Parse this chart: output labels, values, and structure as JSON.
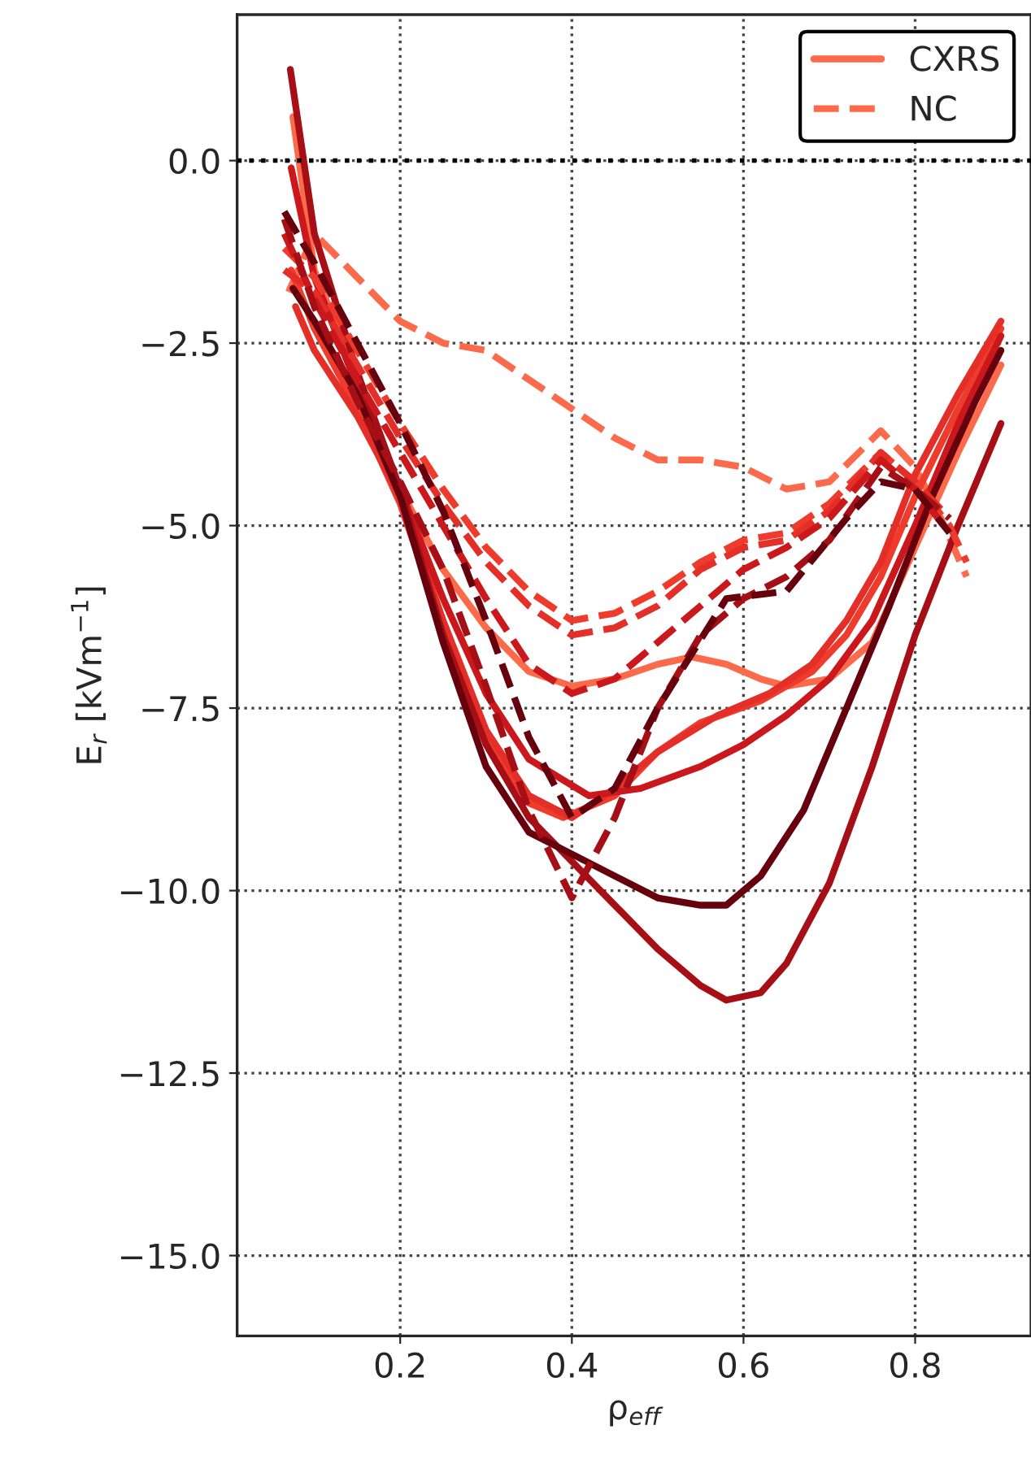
{
  "chart_data": {
    "type": "line",
    "xlabel": "ρ$_{eff}$",
    "ylabel": "E$_{r}$ [kVm$^{−1}$]",
    "xlim": [
      0.01,
      0.935
    ],
    "ylim": [
      -16.1,
      2.0
    ],
    "xticks": [
      0.2,
      0.4,
      0.6,
      0.8
    ],
    "yticks": [
      {
        "value": -15,
        "label": "−15.0"
      },
      {
        "value": -12.5,
        "label": "−12.5"
      },
      {
        "value": -10,
        "label": "−10.0"
      },
      {
        "value": -7.5,
        "label": "−7.5"
      },
      {
        "value": -5,
        "label": "−5.0"
      },
      {
        "value": -2.5,
        "label": "−2.5"
      },
      {
        "value": 0,
        "label": "0.0"
      }
    ],
    "grid": true,
    "legend": "top right",
    "marker": "none",
    "ref_lines": [
      {
        "axis": "y",
        "value": 0,
        "color": "#000000",
        "line_style": "dotted"
      }
    ],
    "series": [
      {
        "name": "CXRS",
        "color": "#fb6a4a",
        "line_style": "solid",
        "x": [
          0.075,
          0.1,
          0.15,
          0.2,
          0.25,
          0.3,
          0.35,
          0.4,
          0.45,
          0.5,
          0.54,
          0.58,
          0.62,
          0.65,
          0.7,
          0.75,
          0.8,
          0.85,
          0.9
        ],
        "values": [
          0.6,
          -1.5,
          -3.0,
          -4.5,
          -5.6,
          -6.4,
          -7.0,
          -7.2,
          -7.1,
          -6.9,
          -6.8,
          -6.9,
          -7.1,
          -7.2,
          -7.1,
          -6.6,
          -5.3,
          -4.0,
          -2.8
        ]
      },
      {
        "name": "NC",
        "color": "#fb6a4a",
        "line_style": "dashed",
        "x": [
          0.07,
          0.1,
          0.15,
          0.2,
          0.25,
          0.3,
          0.35,
          0.4,
          0.45,
          0.5,
          0.55,
          0.6,
          0.65,
          0.7,
          0.76,
          0.8,
          0.83,
          0.86
        ],
        "values": [
          -1.8,
          -1.0,
          -1.6,
          -2.2,
          -2.5,
          -2.6,
          -3.0,
          -3.4,
          -3.8,
          -4.1,
          -4.1,
          -4.2,
          -4.5,
          -4.4,
          -3.7,
          -4.2,
          -4.9,
          -5.7
        ]
      },
      {
        "color": "#ef3b2c",
        "line_style": "solid",
        "x": [
          0.073,
          0.1,
          0.15,
          0.2,
          0.25,
          0.3,
          0.35,
          0.39,
          0.45,
          0.5,
          0.55,
          0.62,
          0.68,
          0.72,
          0.76,
          0.8,
          0.85,
          0.9
        ],
        "values": [
          -1.5,
          -2.3,
          -3.4,
          -4.7,
          -6.4,
          -7.9,
          -8.8,
          -9.0,
          -8.7,
          -8.1,
          -7.7,
          -7.4,
          -7.0,
          -6.5,
          -5.7,
          -4.6,
          -3.4,
          -2.3
        ]
      },
      {
        "color": "#e32f27",
        "line_style": "solid",
        "x": [
          0.078,
          0.1,
          0.15,
          0.2,
          0.25,
          0.3,
          0.35,
          0.4,
          0.45,
          0.5,
          0.57,
          0.63,
          0.68,
          0.72,
          0.76,
          0.8,
          0.85,
          0.9
        ],
        "values": [
          -2.0,
          -2.6,
          -3.5,
          -4.6,
          -6.3,
          -7.8,
          -8.7,
          -9.0,
          -8.6,
          -8.1,
          -7.6,
          -7.3,
          -6.9,
          -6.3,
          -5.5,
          -4.3,
          -3.2,
          -2.2
        ]
      },
      {
        "color": "#cb181d",
        "line_style": "solid",
        "x": [
          0.073,
          0.1,
          0.15,
          0.2,
          0.25,
          0.3,
          0.35,
          0.42,
          0.48,
          0.55,
          0.6,
          0.65,
          0.7,
          0.75,
          0.8,
          0.85,
          0.9
        ],
        "values": [
          -0.1,
          -1.6,
          -3.1,
          -4.5,
          -6.0,
          -7.3,
          -8.2,
          -8.7,
          -8.6,
          -8.3,
          -8.0,
          -7.6,
          -7.1,
          -6.3,
          -5.0,
          -3.6,
          -2.4
        ]
      },
      {
        "color": "#a50f15",
        "line_style": "solid",
        "x": [
          0.072,
          0.1,
          0.15,
          0.2,
          0.25,
          0.3,
          0.35,
          0.4,
          0.45,
          0.5,
          0.55,
          0.58,
          0.62,
          0.65,
          0.7,
          0.75,
          0.8,
          0.85,
          0.9
        ],
        "values": [
          1.25,
          -1.0,
          -2.9,
          -4.5,
          -6.5,
          -8.0,
          -9.0,
          -9.6,
          -10.2,
          -10.8,
          -11.3,
          -11.5,
          -11.4,
          -11.0,
          -9.9,
          -8.3,
          -6.5,
          -5.0,
          -3.6
        ]
      },
      {
        "color": "#67000d",
        "line_style": "solid",
        "x": [
          0.075,
          0.1,
          0.15,
          0.2,
          0.25,
          0.3,
          0.35,
          0.4,
          0.45,
          0.5,
          0.55,
          0.58,
          0.62,
          0.67,
          0.72,
          0.77,
          0.82,
          0.87,
          0.9
        ],
        "values": [
          -1.75,
          -2.2,
          -3.2,
          -4.6,
          -6.6,
          -8.3,
          -9.2,
          -9.5,
          -9.8,
          -10.1,
          -10.2,
          -10.2,
          -9.8,
          -8.9,
          -7.5,
          -6.1,
          -4.6,
          -3.3,
          -2.6
        ]
      },
      {
        "color": "#ef3b2c",
        "line_style": "dashed",
        "x": [
          0.065,
          0.1,
          0.15,
          0.2,
          0.25,
          0.3,
          0.35,
          0.4,
          0.45,
          0.5,
          0.55,
          0.6,
          0.65,
          0.7,
          0.76,
          0.8,
          0.84,
          0.86
        ],
        "values": [
          -1.2,
          -1.6,
          -2.6,
          -3.6,
          -4.5,
          -5.3,
          -5.9,
          -6.3,
          -6.2,
          -5.9,
          -5.5,
          -5.2,
          -5.1,
          -4.7,
          -4.0,
          -4.4,
          -5.0,
          -5.5
        ]
      },
      {
        "color": "#e32f27",
        "line_style": "dashed",
        "x": [
          0.065,
          0.1,
          0.15,
          0.2,
          0.25,
          0.3,
          0.35,
          0.4,
          0.45,
          0.5,
          0.55,
          0.6,
          0.65,
          0.7,
          0.76,
          0.8,
          0.84
        ],
        "values": [
          -1.5,
          -1.8,
          -2.8,
          -3.8,
          -4.7,
          -5.5,
          -6.1,
          -6.5,
          -6.4,
          -6.1,
          -5.6,
          -5.3,
          -5.2,
          -4.8,
          -4.0,
          -4.4,
          -4.9
        ]
      },
      {
        "color": "#cb181d",
        "line_style": "dashed",
        "x": [
          0.065,
          0.1,
          0.15,
          0.2,
          0.25,
          0.3,
          0.35,
          0.4,
          0.45,
          0.5,
          0.55,
          0.6,
          0.65,
          0.7,
          0.76,
          0.8,
          0.84
        ],
        "values": [
          -1.0,
          -1.9,
          -3.0,
          -4.0,
          -5.0,
          -6.0,
          -6.9,
          -7.3,
          -7.1,
          -6.6,
          -6.1,
          -5.6,
          -5.3,
          -4.9,
          -4.1,
          -4.5,
          -5.1
        ]
      },
      {
        "color": "#a50f15",
        "line_style": "dashed",
        "x": [
          0.065,
          0.1,
          0.15,
          0.2,
          0.25,
          0.3,
          0.35,
          0.4,
          0.45,
          0.5,
          0.55,
          0.6,
          0.65,
          0.7,
          0.76,
          0.8,
          0.84
        ],
        "values": [
          -0.8,
          -2.0,
          -3.3,
          -4.4,
          -5.6,
          -7.2,
          -8.9,
          -10.1,
          -9.0,
          -7.5,
          -6.5,
          -6.0,
          -5.7,
          -5.2,
          -4.2,
          -4.5,
          -4.9
        ]
      },
      {
        "color": "#67000d",
        "line_style": "dashed",
        "x": [
          0.065,
          0.1,
          0.15,
          0.2,
          0.25,
          0.3,
          0.35,
          0.4,
          0.45,
          0.5,
          0.58,
          0.65,
          0.72,
          0.76,
          0.8,
          0.84
        ],
        "values": [
          -0.7,
          -1.4,
          -2.5,
          -3.6,
          -4.8,
          -6.3,
          -7.9,
          -9.0,
          -8.6,
          -7.5,
          -6.0,
          -5.9,
          -4.9,
          -4.4,
          -4.5,
          -5.1
        ]
      }
    ]
  }
}
